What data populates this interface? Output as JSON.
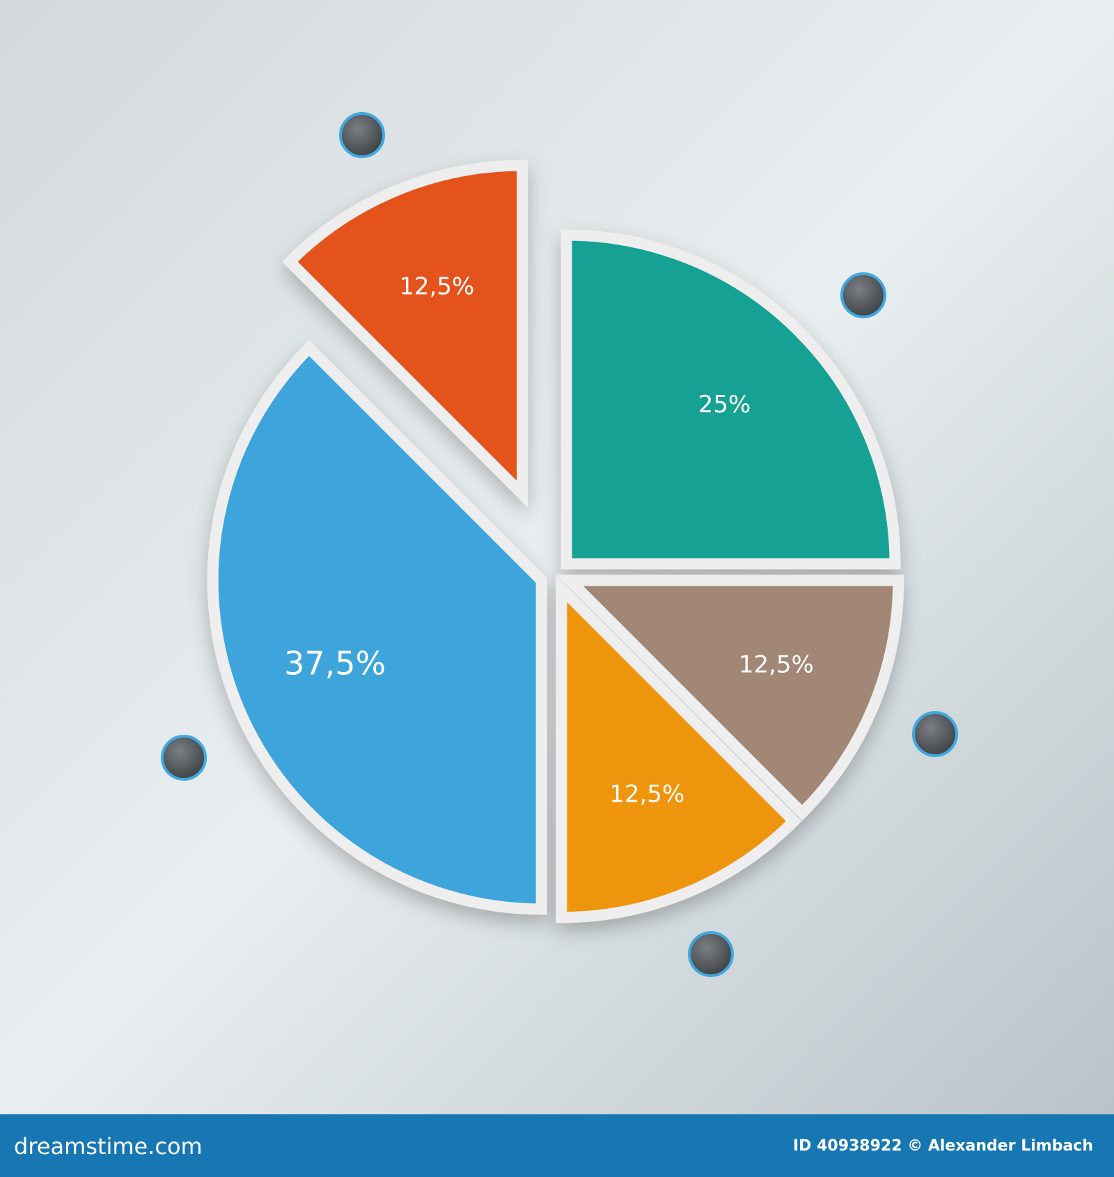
{
  "chart_data": {
    "type": "pie",
    "values": [
      25,
      12.5,
      12.5,
      37.5,
      12.5
    ],
    "value_labels": [
      "25%",
      "12,5%",
      "12,5%",
      "37,5%",
      "12,5%"
    ],
    "colors": [
      "#17a195",
      "#a28776",
      "#ef9407",
      "#3da5dc",
      "#e4531f"
    ]
  },
  "footer": {
    "brand": "dreamstime.com",
    "credit": "ID 40938922 © Alexander Limbach"
  }
}
